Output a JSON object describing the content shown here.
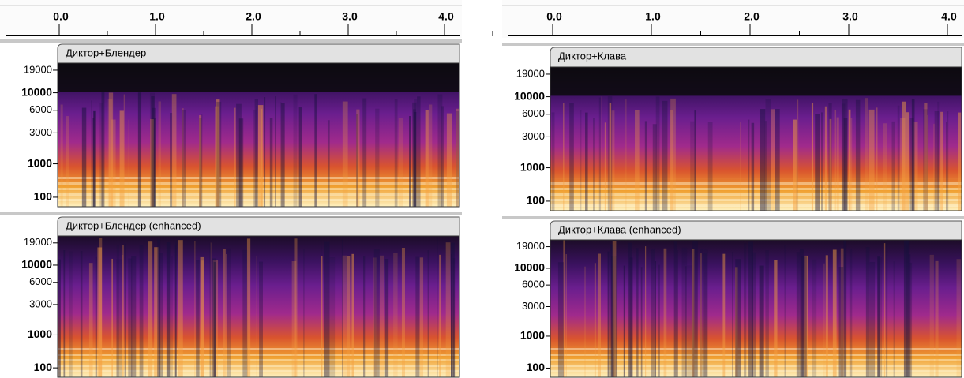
{
  "panels": [
    {
      "ruler": [
        {
          "value": 0,
          "label": "0.0"
        },
        {
          "value": 1,
          "label": "1.0"
        },
        {
          "value": 2,
          "label": "2.0"
        },
        {
          "value": 3,
          "label": "3.0"
        },
        {
          "value": 4,
          "label": "4.0"
        }
      ],
      "tracks": [
        {
          "name": "Диктор+Блендер",
          "freq_labels": [
            19000,
            10000,
            6000,
            3000,
            1000,
            100
          ]
        },
        {
          "name": "Диктор+Блендер (enhanced)",
          "freq_labels": [
            19000,
            10000,
            6000,
            3000,
            1000,
            100
          ]
        }
      ]
    },
    {
      "ruler": [
        {
          "value": 0,
          "label": "0.0"
        },
        {
          "value": 1,
          "label": "1.0"
        },
        {
          "value": 2,
          "label": "2.0"
        },
        {
          "value": 3,
          "label": "3.0"
        },
        {
          "value": 4,
          "label": "4.0"
        }
      ],
      "tracks": [
        {
          "name": "Диктор+Клава",
          "freq_labels": [
            19000,
            10000,
            6000,
            3000,
            1000,
            100
          ]
        },
        {
          "name": "Диктор+Клава (enhanced)",
          "freq_labels": [
            19000,
            10000,
            6000,
            3000,
            1000,
            100
          ]
        }
      ]
    }
  ]
}
